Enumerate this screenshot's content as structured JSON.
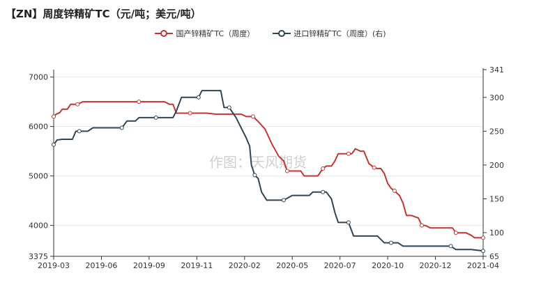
{
  "title": "【ZN】周度锌精矿TC（元/吨；美元/吨）",
  "watermark": "作图：天风期货",
  "chart_data": {
    "type": "line",
    "title": "【ZN】周度锌精矿TC（元/吨；美元/吨）",
    "xlabel": "",
    "ylabel": "",
    "x_ticks": [
      "2019-03",
      "2019-06",
      "2019-09",
      "2019-11",
      "2020-02",
      "2020-05",
      "2020-07",
      "2020-10",
      "2020-12",
      "2021-04"
    ],
    "y_left": {
      "min": 3375,
      "max": 7150,
      "ticks": [
        3375,
        4000,
        5000,
        6000,
        7000
      ]
    },
    "y_right": {
      "min": 65,
      "max": 341,
      "ticks": [
        65,
        100,
        150,
        200,
        250,
        300,
        341
      ]
    },
    "grid": true,
    "legend_position": "top-center",
    "colors": {
      "domestic": "#c23531",
      "import": "#2f4554"
    },
    "series": [
      {
        "name": "国产锌精矿TC（周度）",
        "axis": "left",
        "color": "#c23531",
        "points": [
          [
            0,
            6200
          ],
          [
            0.15,
            6250
          ],
          [
            0.35,
            6280
          ],
          [
            0.5,
            6350
          ],
          [
            0.8,
            6350
          ],
          [
            1.0,
            6450
          ],
          [
            1.4,
            6450
          ],
          [
            1.7,
            6500
          ],
          [
            2.0,
            6500
          ],
          [
            2.4,
            6500
          ],
          [
            3.0,
            6500
          ],
          [
            4.0,
            6500
          ],
          [
            5.0,
            6500
          ],
          [
            6.0,
            6500
          ],
          [
            6.5,
            6500
          ],
          [
            6.8,
            6450
          ],
          [
            7.0,
            6450
          ],
          [
            7.2,
            6270
          ],
          [
            8.0,
            6270
          ],
          [
            9.0,
            6270
          ],
          [
            9.5,
            6250
          ],
          [
            10.0,
            6250
          ],
          [
            11.0,
            6250
          ],
          [
            11.3,
            6200
          ],
          [
            11.7,
            6200
          ],
          [
            12.0,
            6100
          ],
          [
            12.4,
            5950
          ],
          [
            12.8,
            5650
          ],
          [
            13.2,
            5400
          ],
          [
            13.5,
            5300
          ],
          [
            13.7,
            5100
          ],
          [
            14.0,
            5100
          ],
          [
            14.5,
            5100
          ],
          [
            14.7,
            5000
          ],
          [
            15.2,
            5000
          ],
          [
            15.5,
            5000
          ],
          [
            15.8,
            5150
          ],
          [
            16.0,
            5200
          ],
          [
            16.3,
            5200
          ],
          [
            16.5,
            5300
          ],
          [
            16.7,
            5450
          ],
          [
            17.0,
            5450
          ],
          [
            17.3,
            5450
          ],
          [
            17.5,
            5450
          ],
          [
            17.7,
            5550
          ],
          [
            18.0,
            5500
          ],
          [
            18.2,
            5500
          ],
          [
            18.5,
            5250
          ],
          [
            18.8,
            5170
          ],
          [
            19.0,
            5150
          ],
          [
            19.2,
            5150
          ],
          [
            19.4,
            5050
          ],
          [
            19.6,
            4850
          ],
          [
            19.8,
            4750
          ],
          [
            20.0,
            4700
          ],
          [
            20.3,
            4600
          ],
          [
            20.5,
            4450
          ],
          [
            20.7,
            4200
          ],
          [
            21.0,
            4200
          ],
          [
            21.4,
            4150
          ],
          [
            21.6,
            4000
          ],
          [
            21.8,
            4000
          ],
          [
            22.1,
            3950
          ],
          [
            22.5,
            3950
          ],
          [
            23.0,
            3950
          ],
          [
            23.4,
            3950
          ],
          [
            23.6,
            3850
          ],
          [
            24.0,
            3850
          ],
          [
            24.2,
            3850
          ],
          [
            24.5,
            3800
          ],
          [
            24.7,
            3750
          ],
          [
            25.0,
            3750
          ],
          [
            25.2,
            3750
          ]
        ]
      },
      {
        "name": "进口锌精矿TC（周度）(右)",
        "axis": "right",
        "color": "#2f4554",
        "points": [
          [
            0,
            230
          ],
          [
            0.2,
            237
          ],
          [
            0.5,
            238
          ],
          [
            0.9,
            238
          ],
          [
            1.1,
            238
          ],
          [
            1.3,
            250
          ],
          [
            1.5,
            250
          ],
          [
            2.0,
            250
          ],
          [
            2.3,
            255
          ],
          [
            2.8,
            255
          ],
          [
            3.0,
            255
          ],
          [
            3.5,
            255
          ],
          [
            4.0,
            255
          ],
          [
            4.3,
            265
          ],
          [
            4.5,
            265
          ],
          [
            4.8,
            265
          ],
          [
            5.0,
            270
          ],
          [
            5.5,
            270
          ],
          [
            6.0,
            270
          ],
          [
            6.5,
            270
          ],
          [
            7.0,
            270
          ],
          [
            7.2,
            280
          ],
          [
            7.5,
            300
          ],
          [
            8.0,
            300
          ],
          [
            8.5,
            300
          ],
          [
            8.7,
            310
          ],
          [
            9.0,
            310
          ],
          [
            9.5,
            310
          ],
          [
            9.8,
            310
          ],
          [
            10.0,
            285
          ],
          [
            10.3,
            285
          ],
          [
            10.7,
            270
          ],
          [
            11.0,
            255
          ],
          [
            11.3,
            240
          ],
          [
            11.5,
            228
          ],
          [
            11.6,
            200
          ],
          [
            11.8,
            185
          ],
          [
            12.0,
            180
          ],
          [
            12.2,
            160
          ],
          [
            12.5,
            148
          ],
          [
            12.8,
            148
          ],
          [
            13.0,
            148
          ],
          [
            13.5,
            148
          ],
          [
            14.0,
            155
          ],
          [
            14.5,
            155
          ],
          [
            15.0,
            155
          ],
          [
            15.2,
            160
          ],
          [
            15.5,
            160
          ],
          [
            15.8,
            160
          ],
          [
            16.0,
            160
          ],
          [
            16.3,
            150
          ],
          [
            16.5,
            130
          ],
          [
            16.7,
            115
          ],
          [
            17.0,
            115
          ],
          [
            17.3,
            115
          ],
          [
            17.6,
            95
          ],
          [
            18.0,
            95
          ],
          [
            18.5,
            95
          ],
          [
            19.0,
            95
          ],
          [
            19.4,
            85
          ],
          [
            19.8,
            85
          ],
          [
            20.2,
            85
          ],
          [
            20.5,
            80
          ],
          [
            21.0,
            80
          ],
          [
            22.0,
            80
          ],
          [
            23.0,
            80
          ],
          [
            23.3,
            80
          ],
          [
            23.6,
            75
          ],
          [
            24.0,
            75
          ],
          [
            24.5,
            75
          ],
          [
            25.2,
            73
          ]
        ]
      }
    ]
  }
}
